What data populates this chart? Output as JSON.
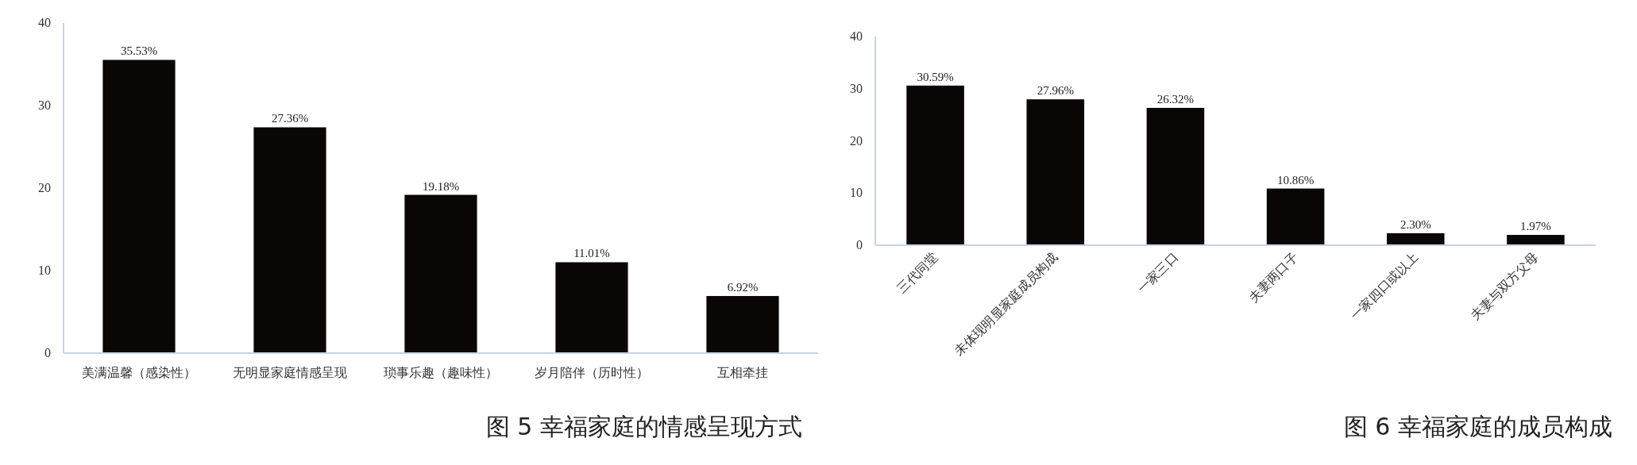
{
  "chart_data": [
    {
      "type": "bar",
      "title": "图 5 幸福家庭的情感呈现方式",
      "categories": [
        "美满温馨（感染性）",
        "无明显家庭情感呈现",
        "琐事乐趣（趣味性）",
        "岁月陪伴（历时性）",
        "互相牵挂"
      ],
      "values": [
        35.53,
        27.36,
        19.18,
        11.01,
        6.92
      ],
      "value_labels": [
        "35.53%",
        "27.36%",
        "19.18%",
        "11.01%",
        "6.92%"
      ],
      "color": "#0a0606",
      "ylim": [
        0,
        40
      ],
      "yticks": [
        0,
        10,
        20,
        30,
        40
      ]
    },
    {
      "type": "bar",
      "title": "图 6 幸福家庭的成员构成",
      "categories": [
        "三代同堂",
        "未体现明显家庭成员构成",
        "一家三口",
        "夫妻两口子",
        "一家四口或以上",
        "夫妻与双方父母"
      ],
      "values": [
        30.59,
        27.96,
        26.32,
        10.86,
        2.3,
        1.97
      ],
      "value_labels": [
        "30.59%",
        "27.96%",
        "26.32%",
        "10.86%",
        "2.30%",
        "1.97%"
      ],
      "color": "#0a0606",
      "ylim": [
        0,
        40
      ],
      "yticks": [
        0,
        10,
        20,
        30,
        40
      ]
    }
  ]
}
